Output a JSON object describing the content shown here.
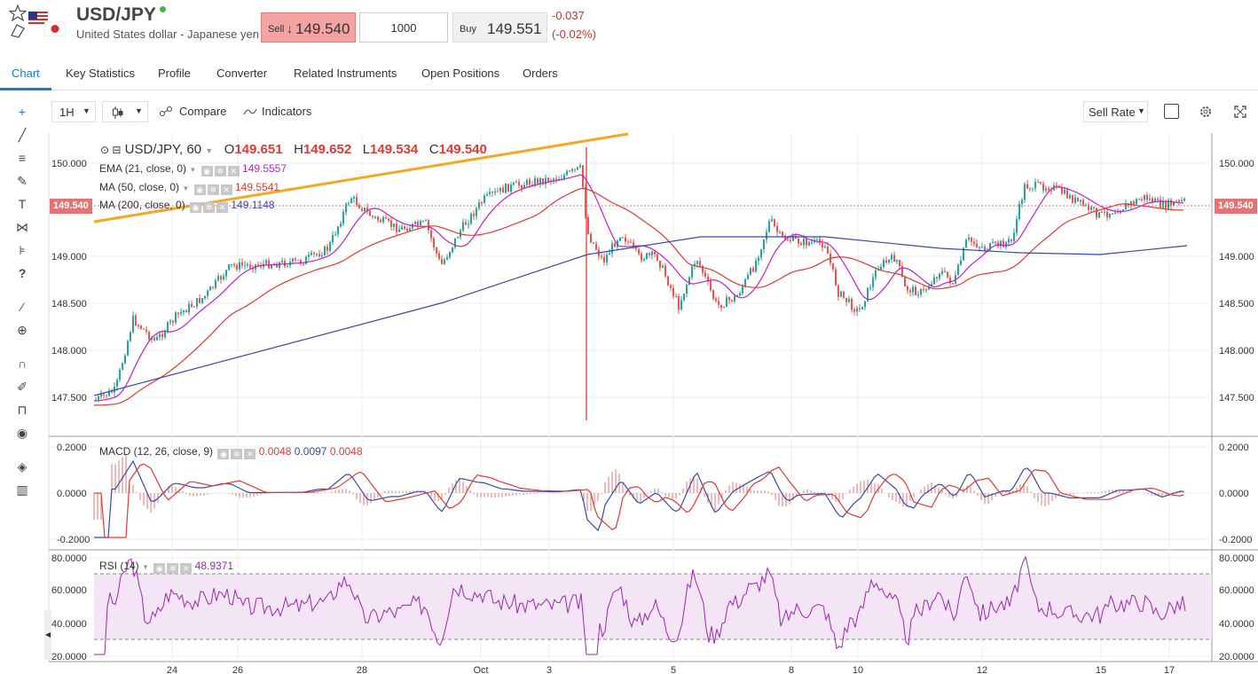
{
  "header": {
    "symbol": "USD/JPY",
    "description": "United States dollar - Japanese yen",
    "sell_label": "Sell",
    "sell_arrow": "↓",
    "sell_price": "149.540",
    "quantity": "1000",
    "buy_label": "Buy",
    "buy_price": "149.551",
    "change": "-0.037",
    "change_pct": "(-0.02%)"
  },
  "tabs": [
    "Chart",
    "Key Statistics",
    "Profile",
    "Converter",
    "Related Instruments",
    "Open Positions",
    "Orders"
  ],
  "toolbar": {
    "interval": "1H",
    "compare": "Compare",
    "indicators": "Indicators",
    "rate_mode": "Sell Rate"
  },
  "left_tools": [
    "crosshair-icon",
    "trend-line-icon",
    "fib-icon",
    "brush-icon",
    "text-icon",
    "pattern-icon",
    "forecast-icon",
    "help-icon",
    "ruler-icon",
    "zoom-icon",
    "magnet-icon",
    "lock-draw-icon",
    "lock-icon",
    "eye-icon",
    "layers-icon",
    "trash-icon"
  ],
  "ohlc": {
    "title": "USD/JPY, 60",
    "o_label": "O",
    "o": "149.651",
    "h_label": "H",
    "h": "149.652",
    "l_label": "L",
    "l": "149.534",
    "c_label": "C",
    "c": "149.540"
  },
  "studies": {
    "ema": {
      "label": "EMA (21, close, 0)",
      "value": "149.5557",
      "color": "#c61fc6"
    },
    "ma50": {
      "label": "MA (50, close, 0)",
      "value": "149.5541",
      "color": "#e53935"
    },
    "ma200": {
      "label": "MA (200, close, 0)",
      "value": "149.1148",
      "color": "#3949ab"
    },
    "macd": {
      "label": "MACD (12, 26, close, 9)",
      "v1": "0.0048",
      "v2": "0.0097",
      "v3": "0.0048"
    },
    "rsi": {
      "label": "RSI (14)",
      "value": "48.9371"
    }
  },
  "price_badge": "149.540",
  "colors": {
    "up": "#26a69a",
    "down": "#ef5350",
    "accent": "#1a7dc4",
    "trend": "#f5a623",
    "rsi_fill": "#f3e5f5",
    "rsi_line": "#9c27b0"
  },
  "chart_data": {
    "type": "candlestick",
    "main_y_ticks": [
      "150.000",
      "149.500",
      "149.000",
      "148.500",
      "148.000",
      "147.500"
    ],
    "macd_y_ticks": [
      "0.2000",
      "0.0000",
      "-0.2000"
    ],
    "rsi_y_ticks": [
      "80.0000",
      "60.0000",
      "40.0000",
      "20.0000"
    ],
    "x_ticks": [
      "24",
      "26",
      "28",
      "Oct",
      "3",
      "5",
      "8",
      "10",
      "12",
      "15",
      "17"
    ],
    "ylim_main": [
      147.4,
      150.2
    ]
  }
}
